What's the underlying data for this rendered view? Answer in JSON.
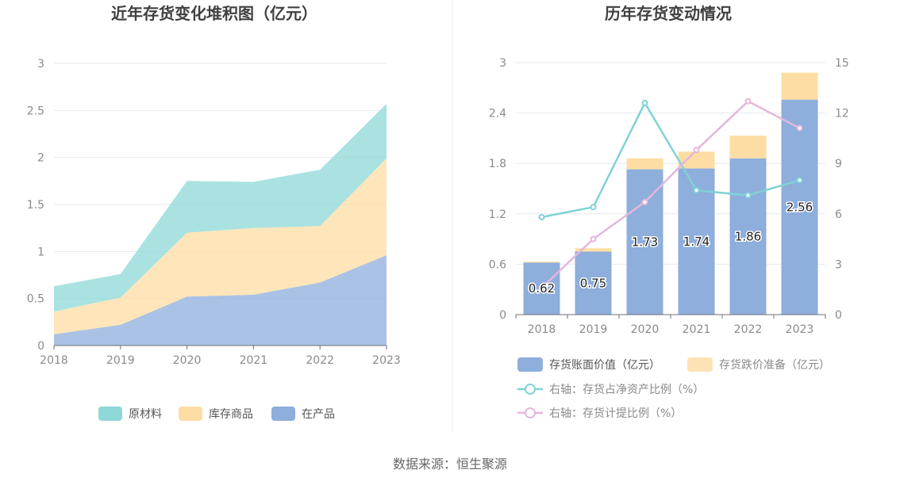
{
  "source_label": "数据来源：恒生聚源",
  "colors": {
    "raw": "#8ed8d8",
    "finished": "#fddda3",
    "wip": "#8eaedc",
    "book": "#8eaedc",
    "reserve": "#fde2b5",
    "net_ratio": "#7fd2d6",
    "provision_ratio": "#e4b6dc",
    "grid": "#e6e8ef",
    "axis": "#6e7079"
  },
  "chart_data": [
    {
      "type": "area",
      "title": "近年存货变化堆积图（亿元）",
      "x": [
        "2018",
        "2019",
        "2020",
        "2021",
        "2022",
        "2023"
      ],
      "ylim": [
        0,
        3
      ],
      "yticks": [
        "0",
        "0.5",
        "1",
        "1.5",
        "2",
        "2.5",
        "3"
      ],
      "stacked": true,
      "series": [
        {
          "name": "在产品",
          "values": [
            0.12,
            0.22,
            0.52,
            0.54,
            0.67,
            0.96
          ]
        },
        {
          "name": "库存商品",
          "values": [
            0.24,
            0.29,
            0.68,
            0.71,
            0.6,
            1.03
          ]
        },
        {
          "name": "原材料",
          "values": [
            0.27,
            0.25,
            0.55,
            0.49,
            0.6,
            0.58
          ]
        }
      ],
      "legend": [
        "原材料",
        "库存商品",
        "在产品"
      ],
      "legend_position": "bottom",
      "grid": true
    },
    {
      "type": "bar",
      "title": "历年存货变动情况",
      "categories": [
        "2018",
        "2019",
        "2020",
        "2021",
        "2022",
        "2023"
      ],
      "ylim": [
        0,
        3
      ],
      "yticks": [
        "0",
        "0.6",
        "1.2",
        "1.8",
        "2.4",
        "3"
      ],
      "y2lim": [
        0,
        15
      ],
      "y2ticks": [
        "0",
        "3",
        "6",
        "9",
        "12",
        "15"
      ],
      "stacked": true,
      "series": [
        {
          "name": "存货账面价值（亿元）",
          "values": [
            0.62,
            0.75,
            1.73,
            1.74,
            1.86,
            2.56
          ],
          "labels": [
            "0.62",
            "0.75",
            "1.73",
            "1.74",
            "1.86",
            "2.56"
          ]
        },
        {
          "name": "存货跌价准备（亿元）",
          "values": [
            0.01,
            0.04,
            0.13,
            0.2,
            0.27,
            0.32
          ]
        }
      ],
      "line_series": [
        {
          "name": "右轴：存货占净资产比例（%）",
          "axis": "right",
          "values": [
            5.8,
            6.4,
            12.6,
            7.4,
            7.1,
            8.0
          ]
        },
        {
          "name": "右轴：存货计提比例（%）",
          "axis": "right",
          "values": [
            1.6,
            4.5,
            6.7,
            9.8,
            12.7,
            11.1
          ]
        }
      ],
      "legend_position": "bottom",
      "grid": true
    }
  ]
}
